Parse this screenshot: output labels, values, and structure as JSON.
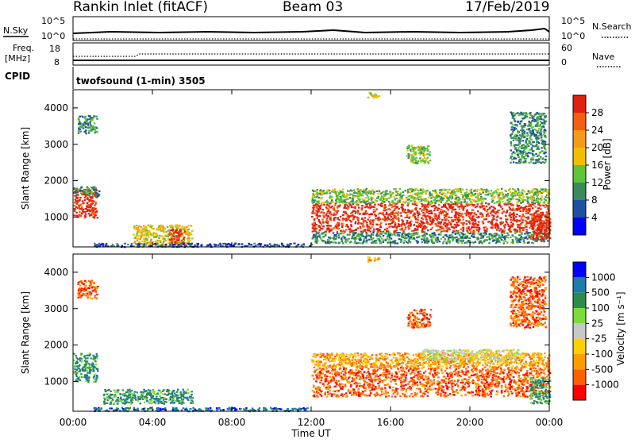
{
  "header": {
    "station": "Rankin Inlet (fitACF)",
    "beam": "Beam 03",
    "date": "17/Feb/2019"
  },
  "top_panels": {
    "nsky_label": "N.Sky",
    "nsearch_label": "N.Search",
    "noise_ticks": [
      "10^5",
      "10^0"
    ],
    "freq_label_1": "Freq.",
    "freq_label_2": "[MHz]",
    "freq_ticks": [
      "18",
      "8"
    ],
    "nave_label": "Nave",
    "nave_ticks": [
      "60",
      "0"
    ],
    "cpid_label": "CPID",
    "cpid_value": "twofsound (1-min) 3505"
  },
  "colors": {
    "power_scale": [
      "#0000ff",
      "#1f4fa0",
      "#3a8a5a",
      "#5ec43c",
      "#f0c000",
      "#f79a1a",
      "#f26010",
      "#e02010"
    ],
    "velocity_scale": [
      "#ff0000",
      "#ff6000",
      "#ff9c00",
      "#ffd000",
      "#c8c8c8",
      "#7ddc3c",
      "#2d8a4d",
      "#1f7ba8",
      "#0000ff"
    ]
  },
  "chart_data": [
    {
      "type": "heatmap",
      "name": "power",
      "xlabel": "",
      "ylabel": "Slant Range [km]",
      "xlim": [
        "00:00",
        "24:00"
      ],
      "ylim": [
        180,
        4500
      ],
      "yticks": [
        "1000",
        "2000",
        "3000",
        "4000"
      ],
      "colorbar_label": "Power [dB]",
      "colorbar_ticks": [
        "28",
        "24",
        "20",
        "16",
        "12",
        "8",
        "4"
      ],
      "regions": [
        {
          "x": [
            0.0,
            1.2
          ],
          "y": [
            1000,
            1800
          ],
          "level": 7
        },
        {
          "x": [
            0.0,
            1.3
          ],
          "y": [
            1600,
            1850
          ],
          "level": 2
        },
        {
          "x": [
            0.2,
            1.2
          ],
          "y": [
            3300,
            3800
          ],
          "level": 2
        },
        {
          "x": [
            3.0,
            6.0
          ],
          "y": [
            200,
            800
          ],
          "level": 4
        },
        {
          "x": [
            4.8,
            5.6
          ],
          "y": [
            300,
            700
          ],
          "level": 7
        },
        {
          "x": [
            1.0,
            12.0
          ],
          "y": [
            200,
            300
          ],
          "level": 1
        },
        {
          "x": [
            12.0,
            24.0
          ],
          "y": [
            600,
            1400
          ],
          "level": 7
        },
        {
          "x": [
            12.0,
            24.0
          ],
          "y": [
            1400,
            1800
          ],
          "level": 3
        },
        {
          "x": [
            12.0,
            24.0
          ],
          "y": [
            300,
            600
          ],
          "level": 2
        },
        {
          "x": [
            14.8,
            15.4
          ],
          "y": [
            4300,
            4450
          ],
          "level": 4
        },
        {
          "x": [
            16.8,
            18.0
          ],
          "y": [
            2500,
            3000
          ],
          "level": 3
        },
        {
          "x": [
            22.0,
            23.8
          ],
          "y": [
            2500,
            3900
          ],
          "level": 2
        },
        {
          "x": [
            23.0,
            24.0
          ],
          "y": [
            400,
            1100
          ],
          "level": 7
        }
      ]
    },
    {
      "type": "heatmap",
      "name": "velocity",
      "xlabel": "Time UT",
      "ylabel": "Slant Range [km]",
      "x_ticks": [
        "00:00",
        "04:00",
        "08:00",
        "12:00",
        "16:00",
        "20:00",
        "00:00"
      ],
      "ylim": [
        180,
        4500
      ],
      "yticks": [
        "1000",
        "2000",
        "3000",
        "4000"
      ],
      "colorbar_label": "Velocity [m s⁻¹]",
      "colorbar_ticks": [
        "1000",
        "500",
        "100",
        "25",
        "-25",
        "-100",
        "-500",
        "-1000"
      ],
      "regions": [
        {
          "x": [
            0.0,
            1.2
          ],
          "y": [
            1000,
            1800
          ],
          "level": 6
        },
        {
          "x": [
            0.2,
            1.2
          ],
          "y": [
            3300,
            3800
          ],
          "level": 1
        },
        {
          "x": [
            1.5,
            6.0
          ],
          "y": [
            400,
            800
          ],
          "level": 6
        },
        {
          "x": [
            1.0,
            12.0
          ],
          "y": [
            200,
            300
          ],
          "level": 7
        },
        {
          "x": [
            12.0,
            24.0
          ],
          "y": [
            600,
            1400
          ],
          "level": 1
        },
        {
          "x": [
            12.0,
            24.0
          ],
          "y": [
            1400,
            1800
          ],
          "level": 2
        },
        {
          "x": [
            17.5,
            22.5
          ],
          "y": [
            1600,
            1900
          ],
          "level": 4
        },
        {
          "x": [
            14.8,
            15.4
          ],
          "y": [
            4300,
            4450
          ],
          "level": 2
        },
        {
          "x": [
            16.8,
            18.0
          ],
          "y": [
            2500,
            3000
          ],
          "level": 1
        },
        {
          "x": [
            22.0,
            23.8
          ],
          "y": [
            2500,
            3900
          ],
          "level": 1
        },
        {
          "x": [
            23.0,
            24.0
          ],
          "y": [
            400,
            1100
          ],
          "level": 6
        }
      ]
    }
  ]
}
